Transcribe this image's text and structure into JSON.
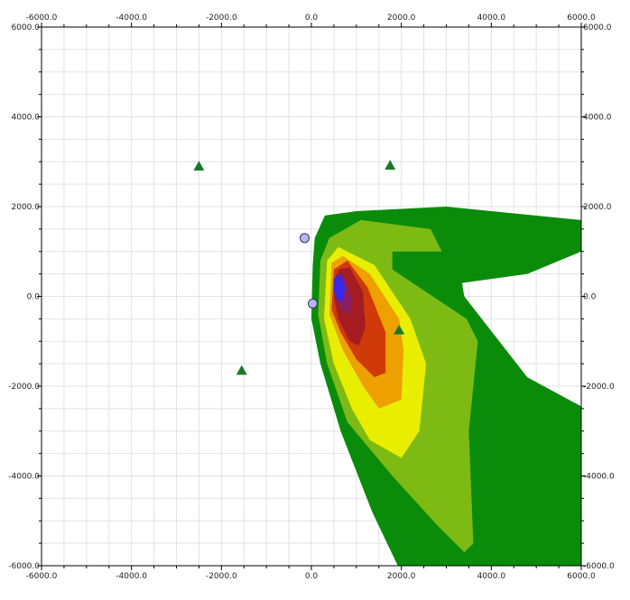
{
  "chart_data": {
    "type": "contour",
    "xlim": [
      -6000,
      6000
    ],
    "ylim": [
      -6000,
      6000
    ],
    "ticks": [
      -6000,
      -4000,
      -2000,
      0,
      2000,
      4000,
      6000
    ],
    "tick_labels": [
      "-6000.0",
      "-4000.0",
      "-2000.0",
      "0.0",
      "2000.0",
      "4000.0",
      "6000.0"
    ],
    "grid": true,
    "minor_grid_step": 500,
    "axes_on_all_sides": true,
    "colors": {
      "level1": "#0a8c0a",
      "level2": "#7dbb14",
      "level3": "#e9ee00",
      "level4": "#eda000",
      "level5": "#d03a08",
      "level6": "#a41c22",
      "level7": "#8a1e60",
      "level8": "#3a2ae8",
      "marker_triangle": "#1a7a2a",
      "marker_circle": "#b8b8ec"
    },
    "contour_levels": [
      {
        "color_key": "level1",
        "points": [
          [
            75,
            1300
          ],
          [
            300,
            1800
          ],
          [
            1000,
            1900
          ],
          [
            3000,
            2000
          ],
          [
            6000,
            1700
          ],
          [
            6000,
            1000
          ],
          [
            4800,
            500
          ],
          [
            3350,
            300
          ],
          [
            3400,
            0
          ],
          [
            4800,
            -1800
          ],
          [
            6000,
            -2450
          ],
          [
            6000,
            -6000
          ],
          [
            1920,
            -6000
          ],
          [
            1350,
            -4800
          ],
          [
            650,
            -3000
          ],
          [
            200,
            -1500
          ],
          [
            0,
            -500
          ],
          [
            30,
            700
          ]
        ]
      },
      {
        "color_key": "level2",
        "points": [
          [
            200,
            800
          ],
          [
            400,
            1300
          ],
          [
            1100,
            1700
          ],
          [
            2650,
            1500
          ],
          [
            2900,
            1000
          ],
          [
            1800,
            1000
          ],
          [
            1800,
            600
          ],
          [
            3450,
            -500
          ],
          [
            3700,
            -1000
          ],
          [
            3600,
            -2000
          ],
          [
            3500,
            -3000
          ],
          [
            3600,
            -5500
          ],
          [
            3400,
            -5700
          ],
          [
            2800,
            -5100
          ],
          [
            1800,
            -4000
          ],
          [
            800,
            -2800
          ],
          [
            350,
            -1500
          ],
          [
            150,
            -400
          ]
        ]
      },
      {
        "color_key": "level3",
        "points": [
          [
            350,
            800
          ],
          [
            600,
            1100
          ],
          [
            1400,
            700
          ],
          [
            2200,
            -500
          ],
          [
            2550,
            -1500
          ],
          [
            2400,
            -3000
          ],
          [
            2000,
            -3600
          ],
          [
            1300,
            -3200
          ],
          [
            900,
            -2500
          ],
          [
            500,
            -1500
          ],
          [
            280,
            -500
          ]
        ]
      },
      {
        "color_key": "level4",
        "points": [
          [
            450,
            750
          ],
          [
            700,
            900
          ],
          [
            1300,
            500
          ],
          [
            1950,
            -500
          ],
          [
            2050,
            -1200
          ],
          [
            2000,
            -2300
          ],
          [
            1500,
            -2500
          ],
          [
            1150,
            -2000
          ],
          [
            700,
            -1200
          ],
          [
            400,
            -400
          ]
        ]
      },
      {
        "color_key": "level5",
        "points": [
          [
            500,
            600
          ],
          [
            800,
            800
          ],
          [
            1250,
            200
          ],
          [
            1650,
            -800
          ],
          [
            1650,
            -1700
          ],
          [
            1400,
            -1800
          ],
          [
            1000,
            -1400
          ],
          [
            650,
            -800
          ],
          [
            450,
            -300
          ]
        ]
      },
      {
        "color_key": "level6",
        "points": [
          [
            600,
            600
          ],
          [
            850,
            650
          ],
          [
            1150,
            100
          ],
          [
            1200,
            -700
          ],
          [
            1050,
            -1100
          ],
          [
            850,
            -1000
          ],
          [
            600,
            -500
          ],
          [
            500,
            0
          ]
        ]
      },
      {
        "color_key": "level7",
        "points": [
          [
            550,
            500
          ],
          [
            750,
            450
          ],
          [
            900,
            -100
          ],
          [
            850,
            -400
          ],
          [
            650,
            -300
          ],
          [
            500,
            100
          ]
        ]
      },
      {
        "color_key": "level8",
        "points": [
          [
            500,
            400
          ],
          [
            650,
            500
          ],
          [
            750,
            200
          ],
          [
            700,
            -100
          ],
          [
            600,
            -100
          ],
          [
            500,
            100
          ]
        ]
      }
    ],
    "markers": [
      {
        "shape": "triangle",
        "x": -2500,
        "y": 2900
      },
      {
        "shape": "triangle",
        "x": 1750,
        "y": 2920
      },
      {
        "shape": "triangle",
        "x": 1950,
        "y": -750
      },
      {
        "shape": "triangle",
        "x": -1550,
        "y": -1650
      },
      {
        "shape": "circle",
        "x": -150,
        "y": 1300
      },
      {
        "shape": "circle",
        "x": 30,
        "y": -160
      }
    ]
  }
}
